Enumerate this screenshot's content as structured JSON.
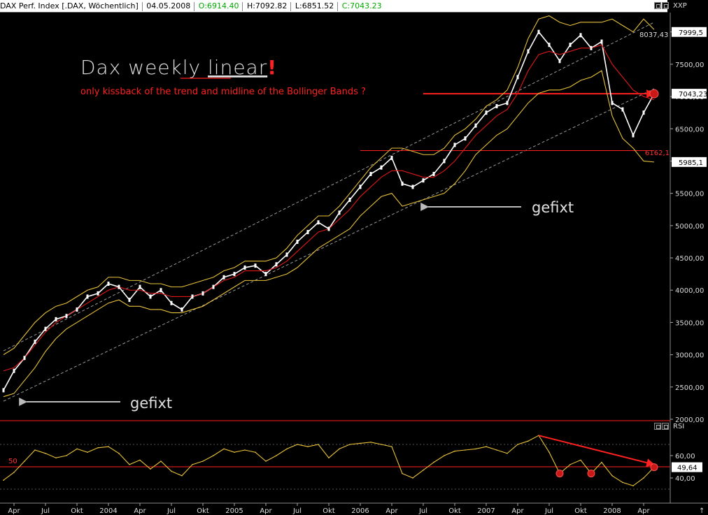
{
  "header": {
    "symbol": "DAX Perf. Index [.DAX, Wöchentlich]",
    "date": "04.05.2008",
    "open": "O:6914.40",
    "high": "H:7092.82",
    "low": "L:6851.52",
    "close": "C:7043.23"
  },
  "price_panel": {
    "axis_title": "XXP"
  },
  "rsi_panel": {
    "axis_title": "RSI"
  },
  "annotations": {
    "title_text": "Dax weekly ",
    "title_underlined": "linear",
    "title_exclaim": "!",
    "subtitle": "only kissback of the trend and midline of the Bollinger Bands ?",
    "gefixt_upper": "gefixt",
    "gefixt_lower": "gefixt",
    "level_high": "8037,43",
    "level_support": "6162,1",
    "rsi_level_label": "50",
    "arrow_up": "↑"
  },
  "colors": {
    "price": "#ffffff",
    "bollinger": "#e8c23a",
    "midline": "#e01818",
    "annotation_red": "#ff2020",
    "grid_dash": "#9a9a9a",
    "rsi_line": "#e8c23a"
  },
  "chart_data": [
    {
      "type": "line",
      "title": "DAX Perf. Index [.DAX, Wöchentlich]",
      "x": [
        "2003-03",
        "2003-04",
        "2003-05",
        "2003-06",
        "2003-07",
        "2003-08",
        "2003-09",
        "2003-10",
        "2003-11",
        "2003-12",
        "2004-01",
        "2004-02",
        "2004-03",
        "2004-04",
        "2004-05",
        "2004-06",
        "2004-07",
        "2004-08",
        "2004-09",
        "2004-10",
        "2004-11",
        "2004-12",
        "2005-01",
        "2005-02",
        "2005-03",
        "2005-04",
        "2005-05",
        "2005-06",
        "2005-07",
        "2005-08",
        "2005-09",
        "2005-10",
        "2005-11",
        "2005-12",
        "2006-01",
        "2006-02",
        "2006-03",
        "2006-04",
        "2006-05",
        "2006-06",
        "2006-07",
        "2006-08",
        "2006-09",
        "2006-10",
        "2006-11",
        "2006-12",
        "2007-01",
        "2007-02",
        "2007-03",
        "2007-04",
        "2007-05",
        "2007-06",
        "2007-07",
        "2007-08",
        "2007-09",
        "2007-10",
        "2007-11",
        "2007-12",
        "2008-01",
        "2008-02",
        "2008-03",
        "2008-04",
        "2008-05"
      ],
      "series": [
        {
          "name": "Close",
          "values": [
            2450,
            2750,
            2950,
            3200,
            3400,
            3550,
            3600,
            3700,
            3900,
            3950,
            4100,
            4050,
            3850,
            4050,
            3900,
            4000,
            3800,
            3700,
            3900,
            3950,
            4050,
            4200,
            4250,
            4350,
            4380,
            4250,
            4400,
            4550,
            4750,
            4900,
            5050,
            4950,
            5200,
            5400,
            5600,
            5800,
            5900,
            6050,
            5650,
            5600,
            5700,
            5800,
            6000,
            6250,
            6350,
            6550,
            6750,
            6850,
            6900,
            7300,
            7700,
            8000,
            7800,
            7550,
            7800,
            7950,
            7750,
            7850,
            6900,
            6800,
            6400,
            6750,
            7043
          ]
        },
        {
          "name": "Bollinger Upper",
          "values": [
            3000,
            3100,
            3300,
            3500,
            3650,
            3750,
            3800,
            3900,
            4000,
            4050,
            4200,
            4200,
            4150,
            4150,
            4100,
            4100,
            4050,
            4050,
            4100,
            4150,
            4200,
            4300,
            4350,
            4450,
            4450,
            4450,
            4500,
            4650,
            4850,
            5000,
            5150,
            5150,
            5300,
            5500,
            5700,
            5900,
            6050,
            6200,
            6200,
            6150,
            6100,
            6100,
            6200,
            6400,
            6500,
            6650,
            6850,
            6950,
            7100,
            7450,
            7900,
            8200,
            8250,
            8150,
            8100,
            8150,
            8150,
            8150,
            8200,
            8100,
            8000,
            8200,
            8037
          ]
        },
        {
          "name": "Bollinger Mid",
          "values": [
            2750,
            2800,
            2950,
            3150,
            3350,
            3500,
            3600,
            3700,
            3800,
            3900,
            4000,
            4050,
            4000,
            4000,
            3950,
            3950,
            3900,
            3900,
            3900,
            3950,
            4050,
            4150,
            4200,
            4300,
            4300,
            4300,
            4350,
            4450,
            4600,
            4750,
            4900,
            4950,
            5100,
            5250,
            5450,
            5600,
            5750,
            5850,
            5850,
            5800,
            5750,
            5750,
            5850,
            6000,
            6200,
            6400,
            6550,
            6700,
            6800,
            7050,
            7400,
            7650,
            7700,
            7650,
            7700,
            7750,
            7750,
            7800,
            7500,
            7300,
            7100,
            7000,
            6950
          ]
        },
        {
          "name": "Bollinger Lower",
          "values": [
            2350,
            2400,
            2600,
            2800,
            3050,
            3250,
            3400,
            3500,
            3600,
            3700,
            3800,
            3850,
            3750,
            3750,
            3700,
            3700,
            3650,
            3650,
            3700,
            3750,
            3850,
            3950,
            4050,
            4150,
            4150,
            4150,
            4200,
            4250,
            4350,
            4500,
            4650,
            4750,
            4850,
            4950,
            5150,
            5300,
            5450,
            5500,
            5300,
            5350,
            5400,
            5450,
            5500,
            5650,
            5850,
            6100,
            6250,
            6400,
            6500,
            6700,
            6900,
            7050,
            7100,
            7100,
            7150,
            7250,
            7300,
            7400,
            6700,
            6350,
            6200,
            6000,
            5985
          ]
        }
      ],
      "ylim": [
        2000,
        8300
      ],
      "y_ticks": [
        2000,
        2500,
        3000,
        3500,
        4000,
        4500,
        5000,
        5500,
        6000,
        6500,
        7000,
        7500,
        8000
      ],
      "y_tick_labels": [
        "2000,00",
        "2500,00",
        "3000,00",
        "3500,00",
        "4000,00",
        "4500,00",
        "5000,00",
        "5500,00",
        "6000,00",
        "6500,00",
        "7000,00",
        "7500,00",
        "8000,00"
      ],
      "x_ticks": [
        {
          "date": "2003-04",
          "label": "Apr"
        },
        {
          "date": "2003-07",
          "label": "Jul"
        },
        {
          "date": "2003-10",
          "label": "Okt"
        },
        {
          "date": "2004-01",
          "label": "2004"
        },
        {
          "date": "2004-04",
          "label": "Apr"
        },
        {
          "date": "2004-07",
          "label": "Jul"
        },
        {
          "date": "2004-10",
          "label": "Okt"
        },
        {
          "date": "2005-01",
          "label": "2005"
        },
        {
          "date": "2005-04",
          "label": "Apr"
        },
        {
          "date": "2005-07",
          "label": "Jul"
        },
        {
          "date": "2005-10",
          "label": "Okt"
        },
        {
          "date": "2006-01",
          "label": "2006"
        },
        {
          "date": "2006-04",
          "label": "Apr"
        },
        {
          "date": "2006-07",
          "label": "Jul"
        },
        {
          "date": "2006-10",
          "label": "Okt"
        },
        {
          "date": "2007-01",
          "label": "2007"
        },
        {
          "date": "2007-04",
          "label": "Apr"
        },
        {
          "date": "2007-07",
          "label": "Jul"
        },
        {
          "date": "2007-10",
          "label": "Okt"
        },
        {
          "date": "2008-01",
          "label": "2008"
        },
        {
          "date": "2008-04",
          "label": "Apr"
        }
      ],
      "price_labels": [
        {
          "value": 7999.5,
          "label": "7999,5",
          "bg": "#ffffff",
          "fg": "#000000"
        },
        {
          "value": 7043.23,
          "label": "7043,23",
          "bg": "#ffffff",
          "fg": "#000000"
        },
        {
          "value": 5985.1,
          "label": "5985,1",
          "bg": "#ffffff",
          "fg": "#000000"
        }
      ],
      "trend_lines": [
        {
          "from": [
            "2003-03",
            3060
          ],
          "to": [
            "2008-05",
            8150
          ]
        },
        {
          "from": [
            "2003-03",
            2280
          ],
          "to": [
            "2008-05",
            7120
          ]
        }
      ],
      "horizontal_lines": [
        {
          "value": 7043,
          "from": "2006-07",
          "to": "2008-05"
        },
        {
          "value": 6162,
          "from": "2006-01",
          "to": "2008-05"
        }
      ],
      "markers": [
        {
          "date": "2008-05",
          "value": 7043
        }
      ],
      "grid": false,
      "legend": "none"
    },
    {
      "type": "line",
      "title": "RSI",
      "x": [
        "2003-03",
        "2003-04",
        "2003-05",
        "2003-06",
        "2003-07",
        "2003-08",
        "2003-09",
        "2003-10",
        "2003-11",
        "2003-12",
        "2004-01",
        "2004-02",
        "2004-03",
        "2004-04",
        "2004-05",
        "2004-06",
        "2004-07",
        "2004-08",
        "2004-09",
        "2004-10",
        "2004-11",
        "2004-12",
        "2005-01",
        "2005-02",
        "2005-03",
        "2005-04",
        "2005-05",
        "2005-06",
        "2005-07",
        "2005-08",
        "2005-09",
        "2005-10",
        "2005-11",
        "2005-12",
        "2006-01",
        "2006-02",
        "2006-03",
        "2006-04",
        "2006-05",
        "2006-06",
        "2006-07",
        "2006-08",
        "2006-09",
        "2006-10",
        "2006-11",
        "2006-12",
        "2007-01",
        "2007-02",
        "2007-03",
        "2007-04",
        "2007-05",
        "2007-06",
        "2007-07",
        "2007-08",
        "2007-09",
        "2007-10",
        "2007-11",
        "2007-12",
        "2008-01",
        "2008-02",
        "2008-03",
        "2008-04",
        "2008-05"
      ],
      "series": [
        {
          "name": "RSI",
          "values": [
            38,
            45,
            55,
            65,
            62,
            58,
            60,
            66,
            63,
            67,
            68,
            62,
            52,
            56,
            48,
            55,
            46,
            42,
            52,
            55,
            60,
            66,
            63,
            65,
            63,
            55,
            60,
            66,
            70,
            68,
            70,
            58,
            66,
            70,
            71,
            72,
            70,
            68,
            44,
            40,
            47,
            54,
            60,
            64,
            65,
            66,
            68,
            65,
            62,
            70,
            73,
            78,
            63,
            44,
            52,
            56,
            44,
            54,
            42,
            36,
            33,
            40,
            49.64
          ]
        }
      ],
      "ylim": [
        20,
        85
      ],
      "y_ticks": [
        40,
        60
      ],
      "y_tick_labels": [
        "40,00",
        "60,00"
      ],
      "reference_lines": [
        {
          "value": 50,
          "label": "50"
        }
      ],
      "value_label": "49,64",
      "markers": [
        {
          "date": "2007-08",
          "value": 44
        },
        {
          "date": "2007-11",
          "value": 44
        },
        {
          "date": "2008-05",
          "value": 49.64
        }
      ],
      "divergence_line": {
        "from": [
          "2007-06",
          78
        ],
        "to": [
          "2008-05",
          52
        ]
      },
      "grid": false,
      "legend": "none"
    }
  ]
}
